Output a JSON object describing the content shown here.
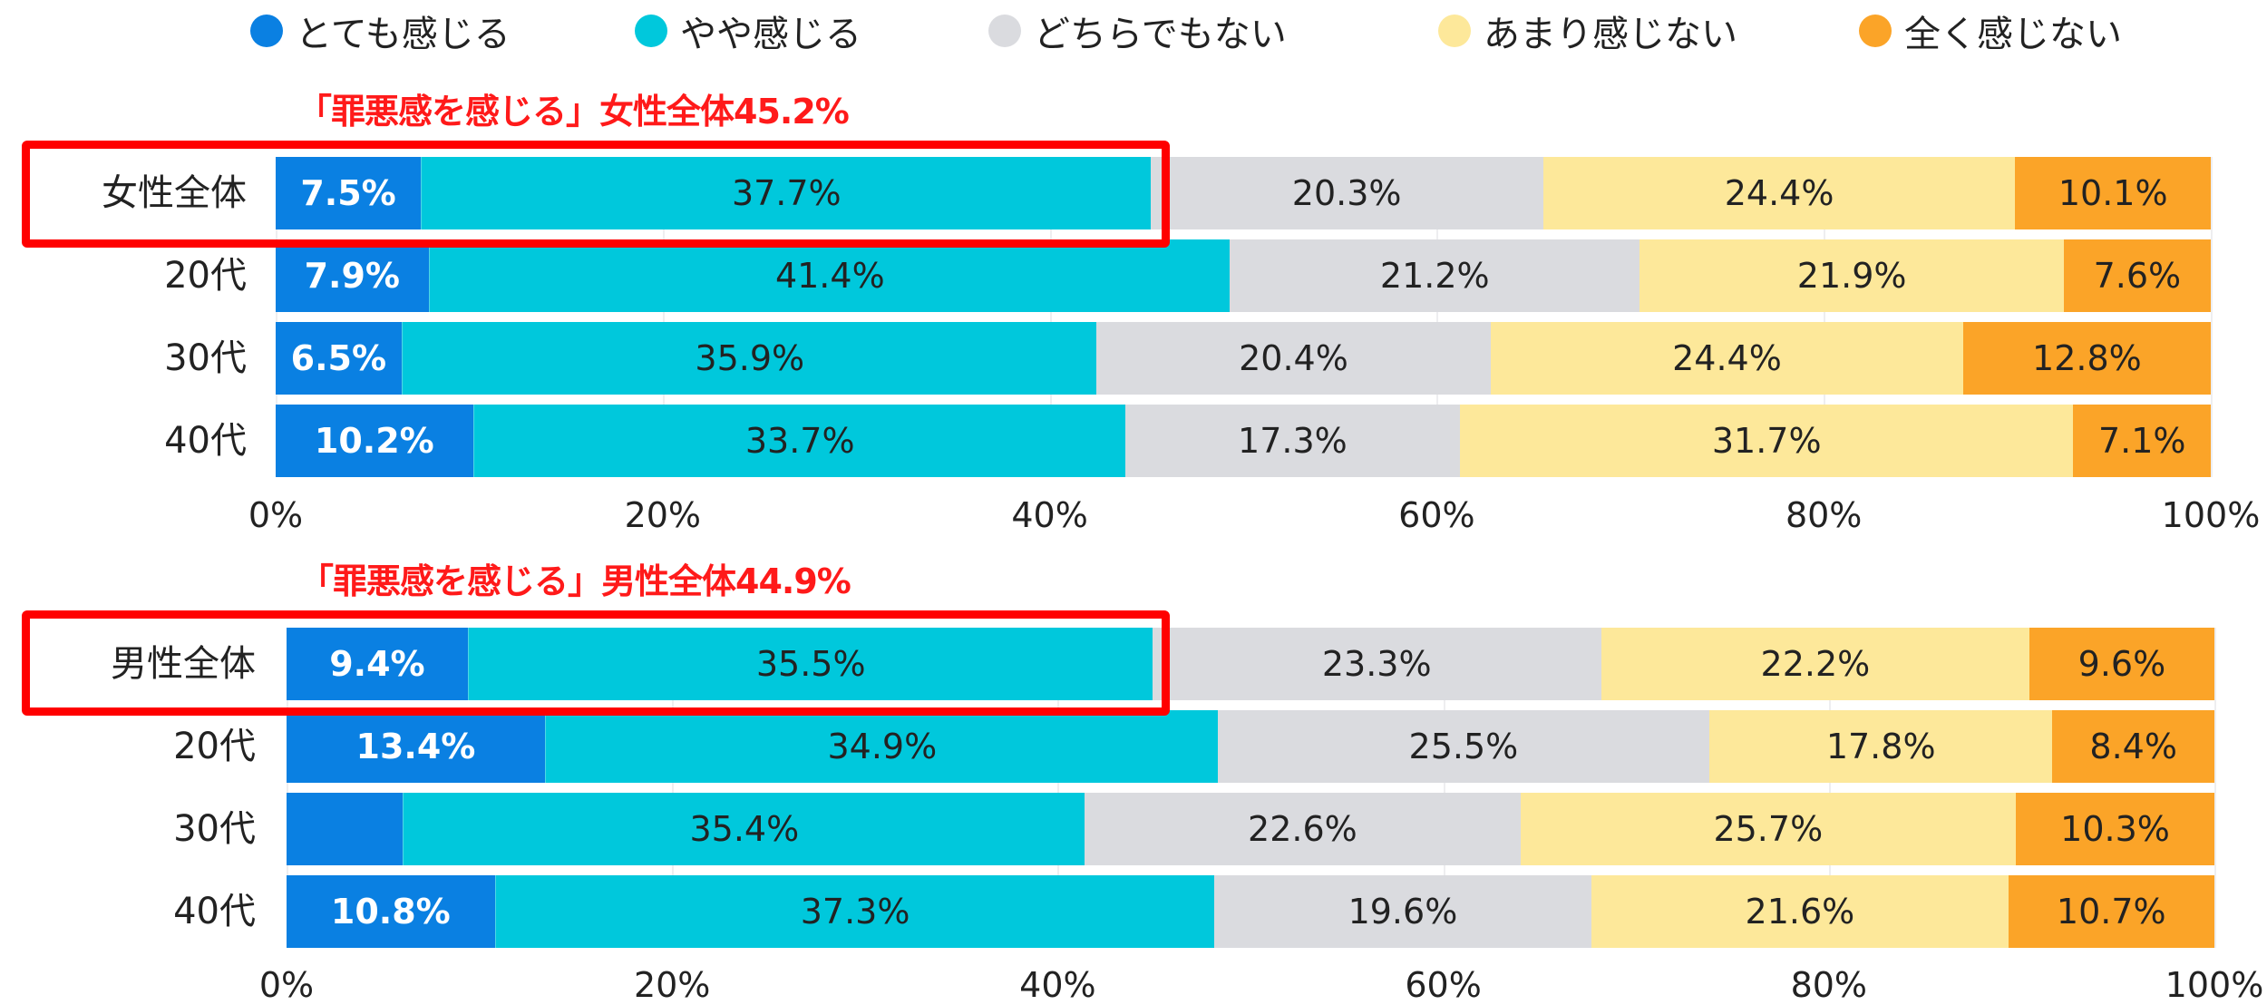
{
  "chart_data": [
    {
      "type": "bar",
      "orientation": "horizontal-stacked-100",
      "annotation": "「罪悪感を感じる」女性全体45.2%",
      "categories": [
        "女性全体",
        "20代",
        "30代",
        "40代"
      ],
      "series": [
        {
          "name": "とても感じる",
          "color": "#0a80e2",
          "values": [
            7.5,
            7.9,
            6.5,
            10.2
          ],
          "labels": [
            "7.5%",
            "7.9%",
            "6.5%",
            "10.2%"
          ]
        },
        {
          "name": "やや感じる",
          "color": "#00c8dc",
          "values": [
            37.7,
            41.4,
            35.9,
            33.7
          ],
          "labels": [
            "37.7%",
            "41.4%",
            "35.9%",
            "33.7%"
          ]
        },
        {
          "name": "どちらでもない",
          "color": "#dadbdf",
          "values": [
            20.3,
            21.2,
            20.4,
            17.3
          ],
          "labels": [
            "20.3%",
            "21.2%",
            "20.4%",
            "17.3%"
          ]
        },
        {
          "name": "あまり感じない",
          "color": "#fde89a",
          "values": [
            24.4,
            21.9,
            24.4,
            31.7
          ],
          "labels": [
            "24.4%",
            "21.9%",
            "24.4%",
            "31.7%"
          ]
        },
        {
          "name": "全く感じない",
          "color": "#fba428",
          "values": [
            10.1,
            7.6,
            12.8,
            7.1
          ],
          "labels": [
            "10.1%",
            "7.6%",
            "12.8%",
            "7.1%"
          ]
        }
      ],
      "xlim": [
        0,
        100
      ],
      "xticks": [
        "0%",
        "20%",
        "40%",
        "60%",
        "80%",
        "100%"
      ],
      "highlight": "女性全体"
    },
    {
      "type": "bar",
      "orientation": "horizontal-stacked-100",
      "annotation": "「罪悪感を感じる」男性全体44.9%",
      "categories": [
        "男性全体",
        "20代",
        "30代",
        "40代"
      ],
      "series": [
        {
          "name": "とても感じる",
          "color": "#0a80e2",
          "values": [
            9.4,
            13.4,
            6.0,
            10.8
          ],
          "labels": [
            "9.4%",
            "13.4%",
            null,
            "10.8%"
          ]
        },
        {
          "name": "やや感じる",
          "color": "#00c8dc",
          "values": [
            35.5,
            34.9,
            35.4,
            37.3
          ],
          "labels": [
            "35.5%",
            "34.9%",
            "35.4%",
            "37.3%"
          ]
        },
        {
          "name": "どちらでもない",
          "color": "#dadbdf",
          "values": [
            23.3,
            25.5,
            22.6,
            19.6
          ],
          "labels": [
            "23.3%",
            "25.5%",
            "22.6%",
            "19.6%"
          ]
        },
        {
          "name": "あまり感じない",
          "color": "#fde89a",
          "values": [
            22.2,
            17.8,
            25.7,
            21.6
          ],
          "labels": [
            "22.2%",
            "17.8%",
            "25.7%",
            "21.6%"
          ]
        },
        {
          "name": "全く感じない",
          "color": "#fba428",
          "values": [
            9.6,
            8.4,
            10.3,
            10.7
          ],
          "labels": [
            "9.6%",
            "8.4%",
            "10.3%",
            "10.7%"
          ]
        }
      ],
      "xlim": [
        0,
        100
      ],
      "xticks": [
        "0%",
        "20%",
        "40%",
        "60%",
        "80%",
        "100%"
      ],
      "highlight": "男性全体"
    }
  ],
  "legend": [
    {
      "label": "とても感じる",
      "color": "#0a80e2"
    },
    {
      "label": "やや感じる",
      "color": "#00c8dc"
    },
    {
      "label": "どちらでもない",
      "color": "#dadbdf"
    },
    {
      "label": "あまり感じない",
      "color": "#fde89a"
    },
    {
      "label": "全く感じない",
      "color": "#fba428"
    }
  ]
}
